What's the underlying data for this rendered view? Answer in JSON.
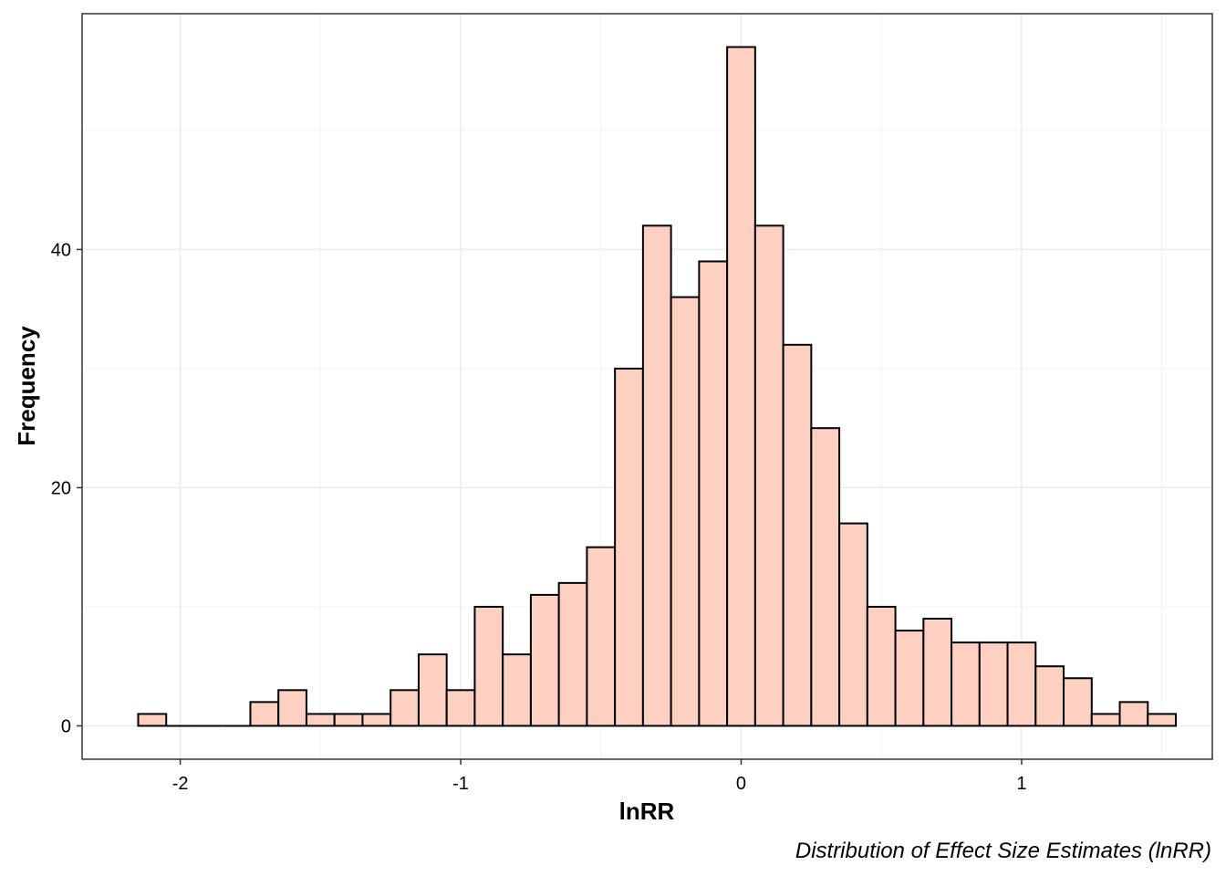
{
  "chart_data": {
    "type": "bar",
    "subtype": "histogram",
    "xlabel": "lnRR",
    "ylabel": "Frequency",
    "caption": "Distribution of Effect Size Estimates (lnRR)",
    "bin_width": 0.1,
    "bin_centers": [
      -2.1,
      -2.0,
      -1.9,
      -1.8,
      -1.7,
      -1.6,
      -1.5,
      -1.4,
      -1.3,
      -1.2,
      -1.1,
      -1.0,
      -0.9,
      -0.8,
      -0.7,
      -0.6,
      -0.5,
      -0.4,
      -0.3,
      -0.2,
      -0.1,
      0.0,
      0.1,
      0.2,
      0.3,
      0.4,
      0.5,
      0.6,
      0.7,
      0.8,
      0.9,
      1.0,
      1.1,
      1.2,
      1.3,
      1.4,
      1.5
    ],
    "values": [
      1,
      0,
      0,
      0,
      2,
      3,
      1,
      1,
      1,
      3,
      6,
      3,
      10,
      6,
      11,
      12,
      15,
      30,
      42,
      36,
      39,
      57,
      42,
      32,
      25,
      17,
      10,
      8,
      9,
      7,
      7,
      7,
      5,
      4,
      1,
      2,
      1
    ],
    "xlim": [
      -2.35,
      1.68
    ],
    "ylim": [
      -2.8,
      59.8
    ],
    "x_ticks": [
      -2,
      -1,
      0,
      1
    ],
    "x_tick_labels": [
      "-2",
      "-1",
      "0",
      "1"
    ],
    "y_ticks": [
      0,
      20,
      40
    ],
    "y_tick_labels": [
      "0",
      "20",
      "40"
    ],
    "grid": true,
    "legend": "none",
    "colors": {
      "bar_fill": "#fdd0c1",
      "bar_stroke": "#000000",
      "grid_major": "#ebebeb",
      "grid_minor": "#f3f3f3",
      "panel_border": "#333333"
    }
  }
}
